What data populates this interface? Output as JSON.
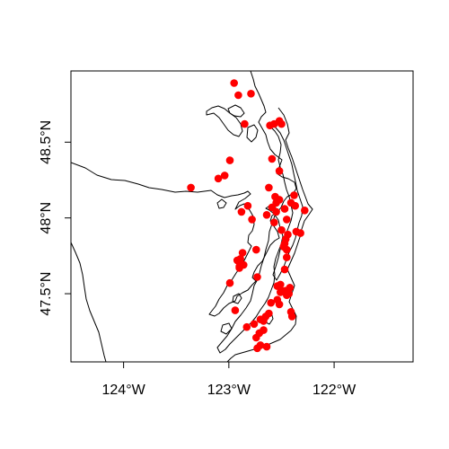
{
  "chart_data": {
    "type": "scatter",
    "title": "",
    "xlabel": "",
    "ylabel": "",
    "xlim": [
      -124.5,
      -121.25
    ],
    "ylim": [
      47.05,
      48.97
    ],
    "x_ticks": [
      {
        "value": -124,
        "label": "124°W"
      },
      {
        "value": -123,
        "label": "123°W"
      },
      {
        "value": -122,
        "label": "122°W"
      }
    ],
    "y_ticks": [
      {
        "value": 47.5,
        "label": "47.5°N"
      },
      {
        "value": 48.0,
        "label": "48°N"
      },
      {
        "value": 48.5,
        "label": "48.5°N"
      }
    ],
    "point_color": "#ff0000",
    "line_color": "#000000",
    "grid": false,
    "series": [
      {
        "values": [
          {
            "x": -122.95,
            "y": 48.89
          },
          {
            "x": -122.79,
            "y": 48.82
          },
          {
            "x": -122.91,
            "y": 48.81
          },
          {
            "x": -122.85,
            "y": 48.62
          },
          {
            "x": -122.52,
            "y": 48.64
          },
          {
            "x": -122.5,
            "y": 48.62
          },
          {
            "x": -122.57,
            "y": 48.62
          },
          {
            "x": -122.61,
            "y": 48.61
          },
          {
            "x": -122.59,
            "y": 48.39
          },
          {
            "x": -122.99,
            "y": 48.38
          },
          {
            "x": -122.52,
            "y": 48.31
          },
          {
            "x": -123.04,
            "y": 48.28
          },
          {
            "x": -123.1,
            "y": 48.26
          },
          {
            "x": -123.36,
            "y": 48.2
          },
          {
            "x": -122.62,
            "y": 48.2
          },
          {
            "x": -122.38,
            "y": 48.15
          },
          {
            "x": -122.56,
            "y": 48.14
          },
          {
            "x": -122.52,
            "y": 48.12
          },
          {
            "x": -122.55,
            "y": 48.1
          },
          {
            "x": -122.41,
            "y": 48.1
          },
          {
            "x": -122.37,
            "y": 48.08
          },
          {
            "x": -122.82,
            "y": 48.08
          },
          {
            "x": -122.59,
            "y": 48.07
          },
          {
            "x": -122.47,
            "y": 48.06
          },
          {
            "x": -122.28,
            "y": 48.05
          },
          {
            "x": -122.55,
            "y": 48.04
          },
          {
            "x": -122.88,
            "y": 48.04
          },
          {
            "x": -122.64,
            "y": 48.02
          },
          {
            "x": -122.45,
            "y": 47.99
          },
          {
            "x": -122.78,
            "y": 47.99
          },
          {
            "x": -122.57,
            "y": 47.97
          },
          {
            "x": -122.5,
            "y": 47.92
          },
          {
            "x": -122.36,
            "y": 47.91
          },
          {
            "x": -122.32,
            "y": 47.9
          },
          {
            "x": -122.44,
            "y": 47.89
          },
          {
            "x": -122.46,
            "y": 47.86
          },
          {
            "x": -122.47,
            "y": 47.83
          },
          {
            "x": -122.48,
            "y": 47.81
          },
          {
            "x": -122.45,
            "y": 47.79
          },
          {
            "x": -122.74,
            "y": 47.79
          },
          {
            "x": -122.87,
            "y": 47.77
          },
          {
            "x": -122.89,
            "y": 47.73
          },
          {
            "x": -122.92,
            "y": 47.72
          },
          {
            "x": -122.45,
            "y": 47.74
          },
          {
            "x": -122.89,
            "y": 47.7
          },
          {
            "x": -122.86,
            "y": 47.69
          },
          {
            "x": -122.9,
            "y": 47.68
          },
          {
            "x": -122.9,
            "y": 47.67
          },
          {
            "x": -122.47,
            "y": 47.66
          },
          {
            "x": -122.73,
            "y": 47.61
          },
          {
            "x": -122.99,
            "y": 47.57
          },
          {
            "x": -122.51,
            "y": 47.56
          },
          {
            "x": -122.54,
            "y": 47.55
          },
          {
            "x": -122.42,
            "y": 47.54
          },
          {
            "x": -122.5,
            "y": 47.52
          },
          {
            "x": -122.46,
            "y": 47.52
          },
          {
            "x": -122.51,
            "y": 47.51
          },
          {
            "x": -122.43,
            "y": 47.5
          },
          {
            "x": -122.45,
            "y": 47.49
          },
          {
            "x": -122.54,
            "y": 47.46
          },
          {
            "x": -122.6,
            "y": 47.44
          },
          {
            "x": -122.52,
            "y": 47.43
          },
          {
            "x": -122.41,
            "y": 47.38
          },
          {
            "x": -122.4,
            "y": 47.35
          },
          {
            "x": -122.94,
            "y": 47.39
          },
          {
            "x": -122.62,
            "y": 47.37
          },
          {
            "x": -122.65,
            "y": 47.35
          },
          {
            "x": -122.7,
            "y": 47.33
          },
          {
            "x": -122.67,
            "y": 47.32
          },
          {
            "x": -122.76,
            "y": 47.3
          },
          {
            "x": -122.83,
            "y": 47.28
          },
          {
            "x": -122.67,
            "y": 47.26
          },
          {
            "x": -122.71,
            "y": 47.24
          },
          {
            "x": -122.74,
            "y": 47.21
          },
          {
            "x": -122.7,
            "y": 47.16
          },
          {
            "x": -122.64,
            "y": 47.15
          },
          {
            "x": -122.73,
            "y": 47.14
          }
        ]
      }
    ]
  }
}
